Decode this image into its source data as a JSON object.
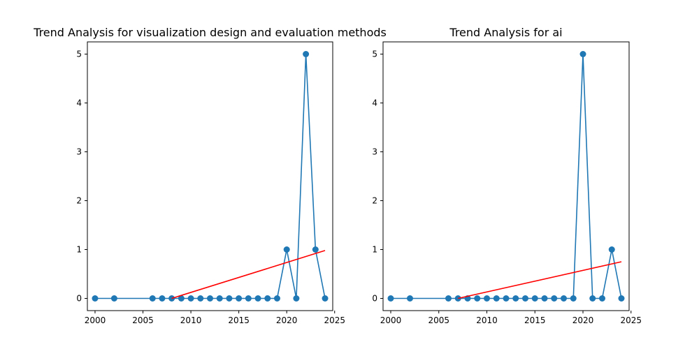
{
  "chart_data": [
    {
      "type": "line",
      "title": "Trend Analysis for visualization design and evaluation methods",
      "xlabel": "",
      "ylabel": "",
      "xlim": [
        1999.2,
        2024.8
      ],
      "ylim": [
        -0.25,
        5.25
      ],
      "xticks": [
        2000,
        2005,
        2010,
        2015,
        2020,
        2025
      ],
      "yticks": [
        0,
        1,
        2,
        3,
        4,
        5
      ],
      "grid": false,
      "series": [
        {
          "color": "#1f77b4",
          "marker": "circle",
          "x": [
            2000,
            2002,
            2006,
            2007,
            2008,
            2009,
            2010,
            2011,
            2012,
            2013,
            2014,
            2015,
            2016,
            2017,
            2018,
            2019,
            2020,
            2021,
            2022,
            2023,
            2024
          ],
          "y": [
            0,
            0,
            0,
            0,
            0,
            0,
            0,
            0,
            0,
            0,
            0,
            0,
            0,
            0,
            0,
            0,
            1,
            0,
            5,
            1,
            0
          ]
        },
        {
          "color": "#ff0000",
          "marker": "none",
          "x": [
            2008,
            2024
          ],
          "y": [
            0.0,
            0.98
          ]
        }
      ]
    },
    {
      "type": "line",
      "title": "Trend Analysis for ai",
      "xlabel": "",
      "ylabel": "",
      "xlim": [
        1999.2,
        2024.8
      ],
      "ylim": [
        -0.25,
        5.25
      ],
      "xticks": [
        2000,
        2005,
        2010,
        2015,
        2020,
        2025
      ],
      "yticks": [
        0,
        1,
        2,
        3,
        4,
        5
      ],
      "grid": false,
      "series": [
        {
          "color": "#1f77b4",
          "marker": "circle",
          "x": [
            2000,
            2002,
            2006,
            2007,
            2008,
            2009,
            2010,
            2011,
            2012,
            2013,
            2014,
            2015,
            2016,
            2017,
            2018,
            2019,
            2020,
            2021,
            2022,
            2023,
            2024
          ],
          "y": [
            0,
            0,
            0,
            0,
            0,
            0,
            0,
            0,
            0,
            0,
            0,
            0,
            0,
            0,
            0,
            0,
            5,
            0,
            0,
            1,
            0
          ]
        },
        {
          "color": "#ff0000",
          "marker": "none",
          "x": [
            2007,
            2024
          ],
          "y": [
            0.0,
            0.75
          ]
        }
      ]
    }
  ]
}
